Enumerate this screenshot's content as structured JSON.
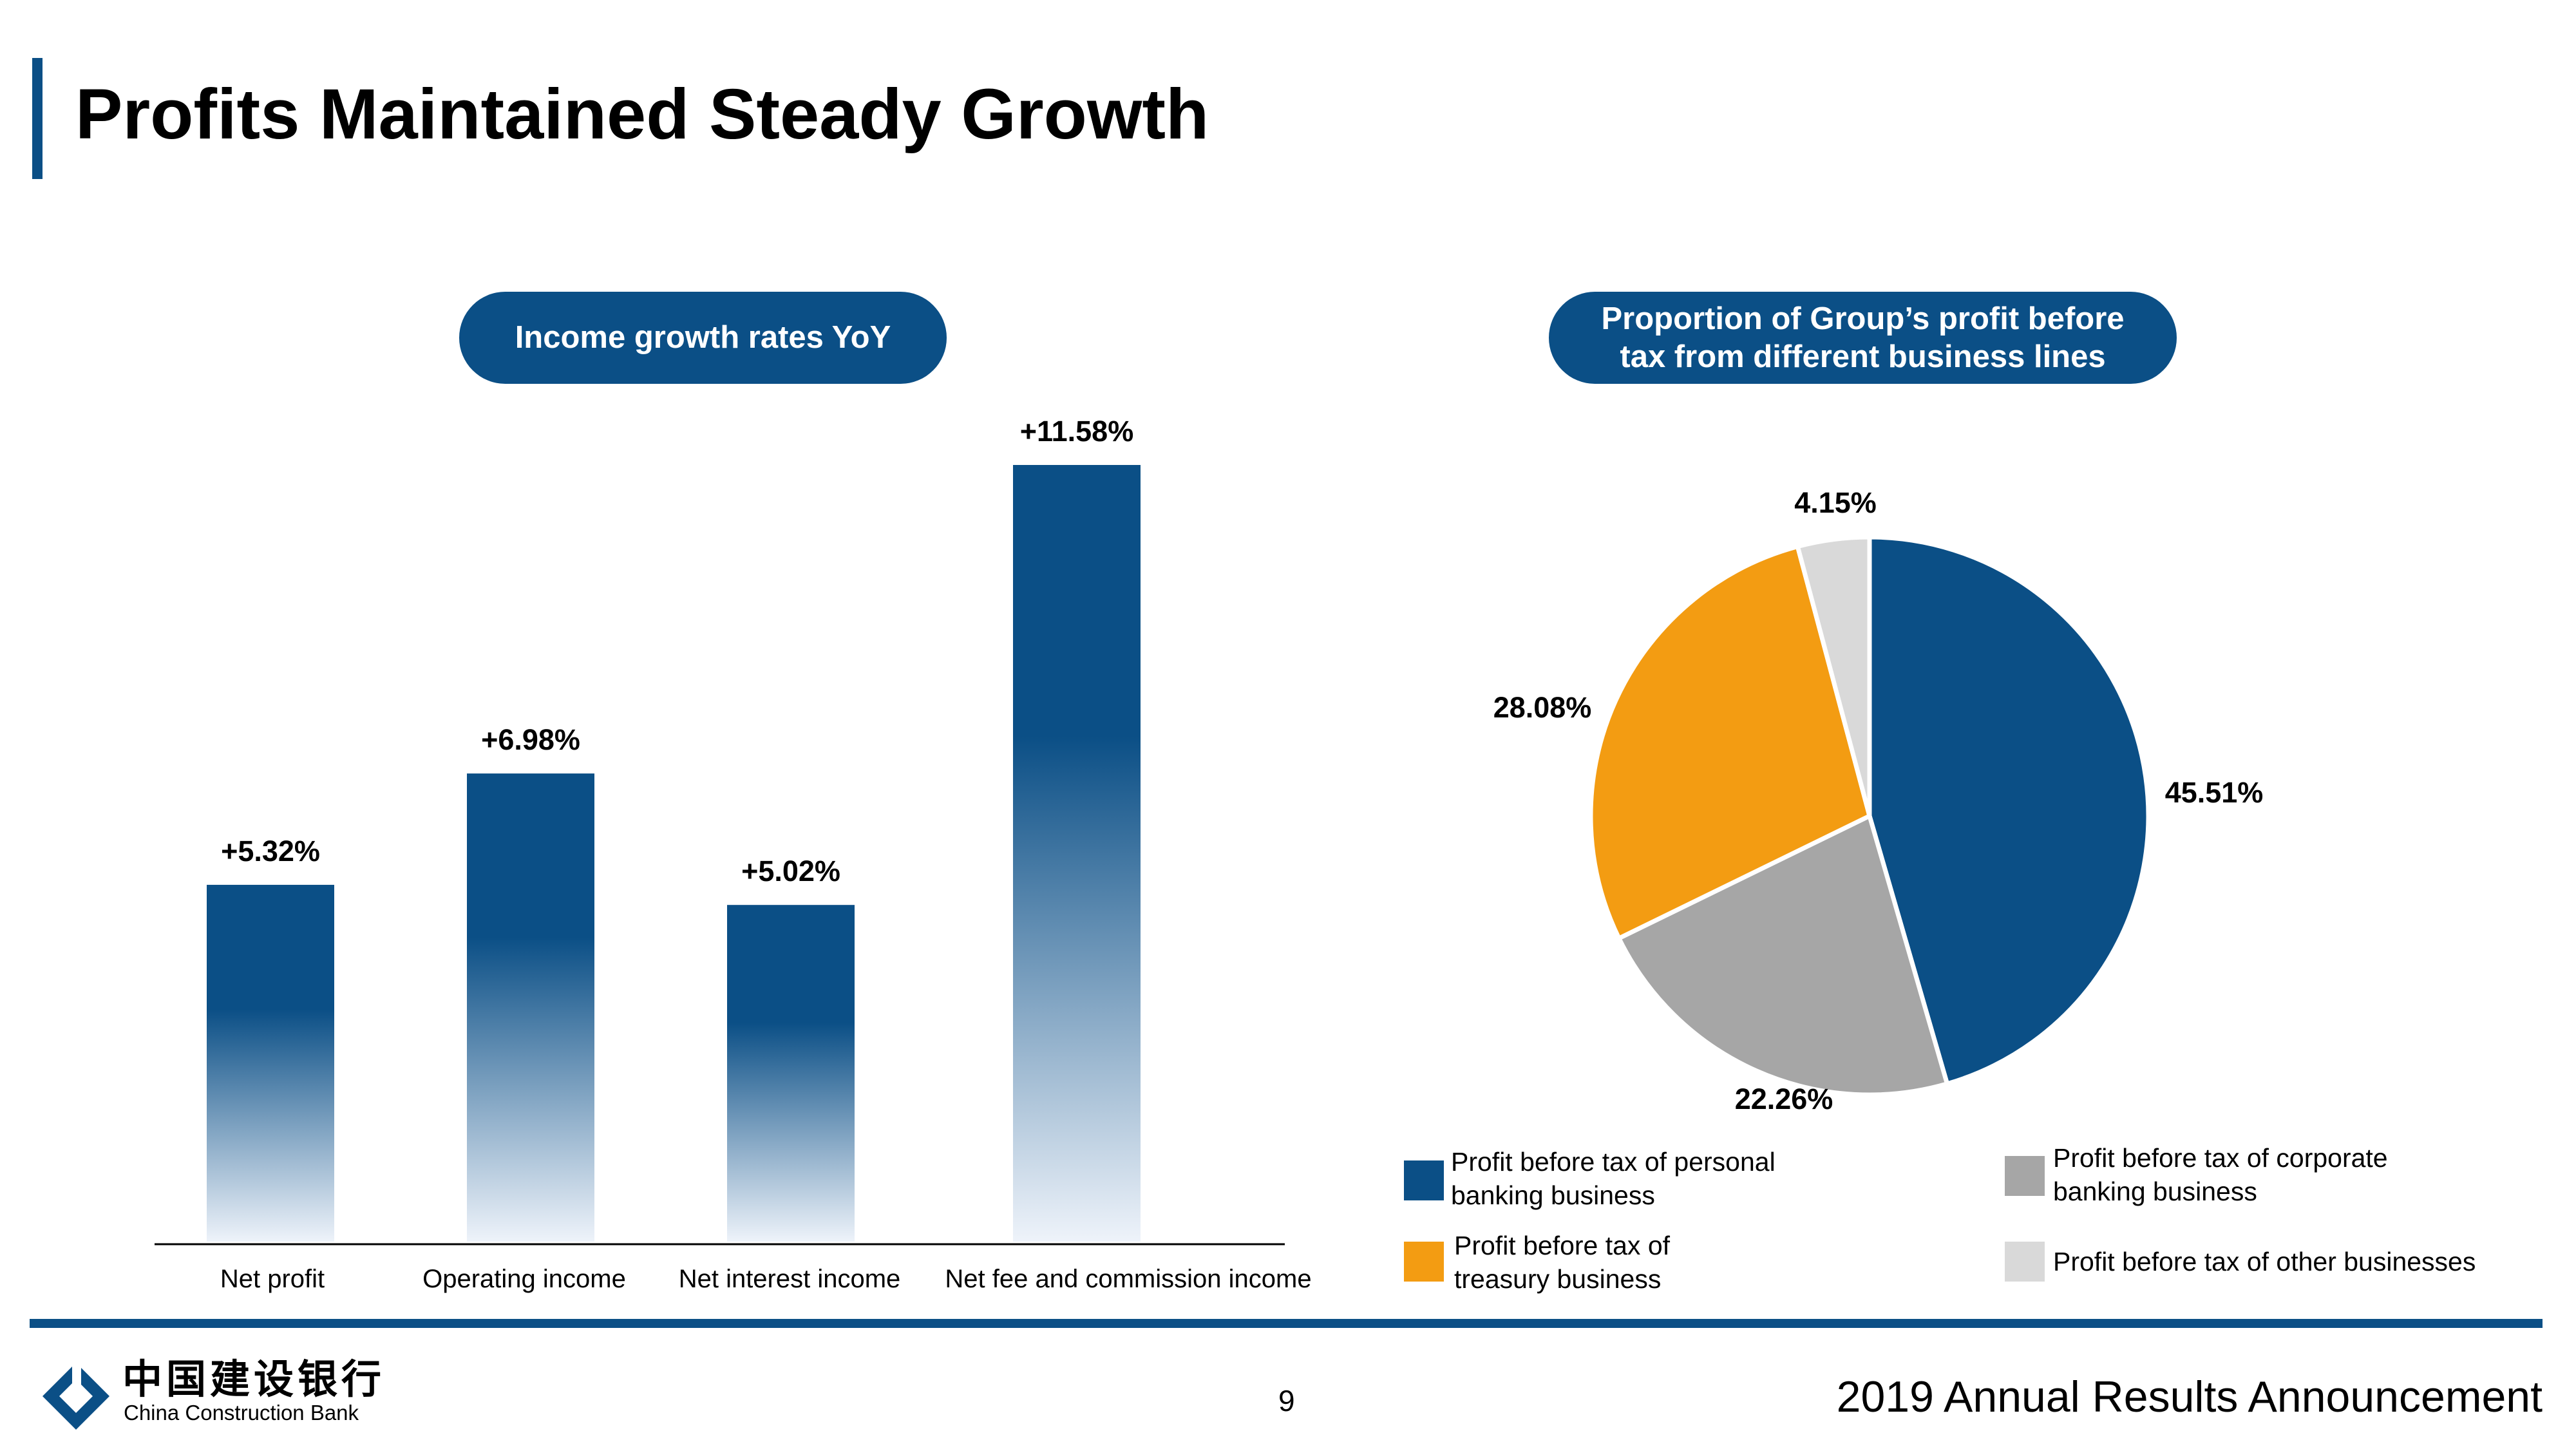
{
  "page": {
    "title": "Profits Maintained Steady Growth",
    "page_number": "9",
    "footer": "2019 Annual Results Announcement",
    "logo_cn": "中国建设银行",
    "logo_en": "China Construction Bank"
  },
  "colors": {
    "brand_blue": "#0b4f86",
    "orange": "#f39c12",
    "gray": "#a6a6a6",
    "light_gray": "#d9d9d9"
  },
  "chart_data": [
    {
      "type": "bar",
      "title": "Income growth rates YoY",
      "categories": [
        "Net profit",
        "Operating income",
        "Net interest income",
        "Net fee and commission income"
      ],
      "values": [
        5.32,
        6.98,
        5.02,
        11.58
      ],
      "data_labels": [
        "+5.32%",
        "+6.98%",
        "+5.02%",
        "+11.58%"
      ],
      "ylim": [
        0,
        12
      ]
    },
    {
      "type": "pie",
      "title": "Proportion of Group’s profit before tax from different business lines",
      "slices": [
        {
          "label": "Profit before tax of personal banking business",
          "value": 45.51,
          "display": "45.51%",
          "color": "#0b4f86"
        },
        {
          "label": "Profit before tax of corporate banking business",
          "value": 22.26,
          "display": "22.26%",
          "color": "#a6a6a6"
        },
        {
          "label": "Profit before tax of treasury business",
          "value": 28.08,
          "display": "28.08%",
          "color": "#f39c12"
        },
        {
          "label": "Profit before tax of other businesses",
          "value": 4.15,
          "display": "4.15%",
          "color": "#d9d9d9"
        }
      ],
      "legend": [
        {
          "text": "Profit before tax of personal banking business",
          "color": "#0b4f86"
        },
        {
          "text": "Profit before tax of corporate banking business",
          "color": "#a6a6a6"
        },
        {
          "text": "Profit before tax of treasury business",
          "color": "#f39c12"
        },
        {
          "text": "Profit before tax of other businesses",
          "color": "#d9d9d9"
        }
      ]
    }
  ]
}
